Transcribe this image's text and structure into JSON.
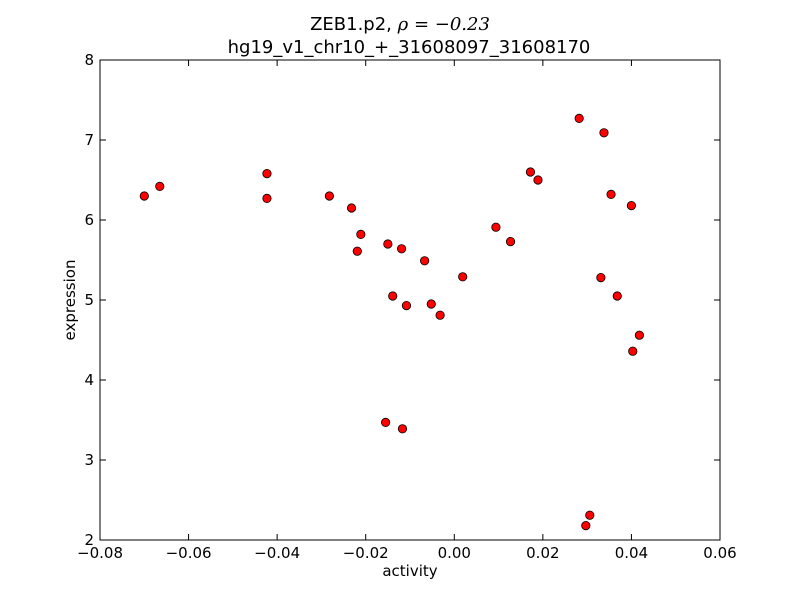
{
  "chart_data": {
    "type": "scatter",
    "title_line1_prefix": "ZEB1.p2, ",
    "title_line1_math": "ρ = −0.23",
    "title_line2": "hg19_v1_chr10_+_31608097_31608170",
    "xlabel": "activity",
    "ylabel": "expression",
    "xlim": [
      -0.08,
      0.06
    ],
    "ylim": [
      2,
      8
    ],
    "xticks": [
      {
        "value": -0.08,
        "label": "−0.08"
      },
      {
        "value": -0.06,
        "label": "−0.06"
      },
      {
        "value": -0.04,
        "label": "−0.04"
      },
      {
        "value": -0.02,
        "label": "−0.02"
      },
      {
        "value": 0.0,
        "label": "0.00"
      },
      {
        "value": 0.02,
        "label": "0.02"
      },
      {
        "value": 0.04,
        "label": "0.04"
      },
      {
        "value": 0.06,
        "label": "0.06"
      }
    ],
    "yticks": [
      {
        "value": 2,
        "label": "2"
      },
      {
        "value": 3,
        "label": "3"
      },
      {
        "value": 4,
        "label": "4"
      },
      {
        "value": 5,
        "label": "5"
      },
      {
        "value": 6,
        "label": "6"
      },
      {
        "value": 7,
        "label": "7"
      },
      {
        "value": 8,
        "label": "8"
      }
    ],
    "marker_color": "#ff0000",
    "marker_edge": "#000000",
    "grid": false,
    "points": [
      {
        "x": -0.07,
        "y": 6.3
      },
      {
        "x": -0.0665,
        "y": 6.42
      },
      {
        "x": -0.0423,
        "y": 6.58
      },
      {
        "x": -0.0423,
        "y": 6.27
      },
      {
        "x": -0.0282,
        "y": 6.3
      },
      {
        "x": -0.0232,
        "y": 6.15
      },
      {
        "x": -0.0211,
        "y": 5.82
      },
      {
        "x": -0.0219,
        "y": 5.61
      },
      {
        "x": -0.015,
        "y": 5.7
      },
      {
        "x": -0.0119,
        "y": 5.64
      },
      {
        "x": -0.0139,
        "y": 5.05
      },
      {
        "x": -0.0108,
        "y": 4.93
      },
      {
        "x": -0.0067,
        "y": 5.49
      },
      {
        "x": -0.0052,
        "y": 4.95
      },
      {
        "x": -0.0032,
        "y": 4.81
      },
      {
        "x": 0.0019,
        "y": 5.29
      },
      {
        "x": -0.0155,
        "y": 3.47
      },
      {
        "x": -0.0117,
        "y": 3.39
      },
      {
        "x": 0.0094,
        "y": 5.91
      },
      {
        "x": 0.0127,
        "y": 5.73
      },
      {
        "x": 0.0172,
        "y": 6.6
      },
      {
        "x": 0.0189,
        "y": 6.5
      },
      {
        "x": 0.0282,
        "y": 7.27
      },
      {
        "x": 0.0338,
        "y": 7.09
      },
      {
        "x": 0.0354,
        "y": 6.32
      },
      {
        "x": 0.04,
        "y": 6.18
      },
      {
        "x": 0.0331,
        "y": 5.28
      },
      {
        "x": 0.0368,
        "y": 5.05
      },
      {
        "x": 0.0418,
        "y": 4.56
      },
      {
        "x": 0.0403,
        "y": 4.36
      },
      {
        "x": 0.0306,
        "y": 2.31
      },
      {
        "x": 0.0297,
        "y": 2.18
      }
    ]
  }
}
